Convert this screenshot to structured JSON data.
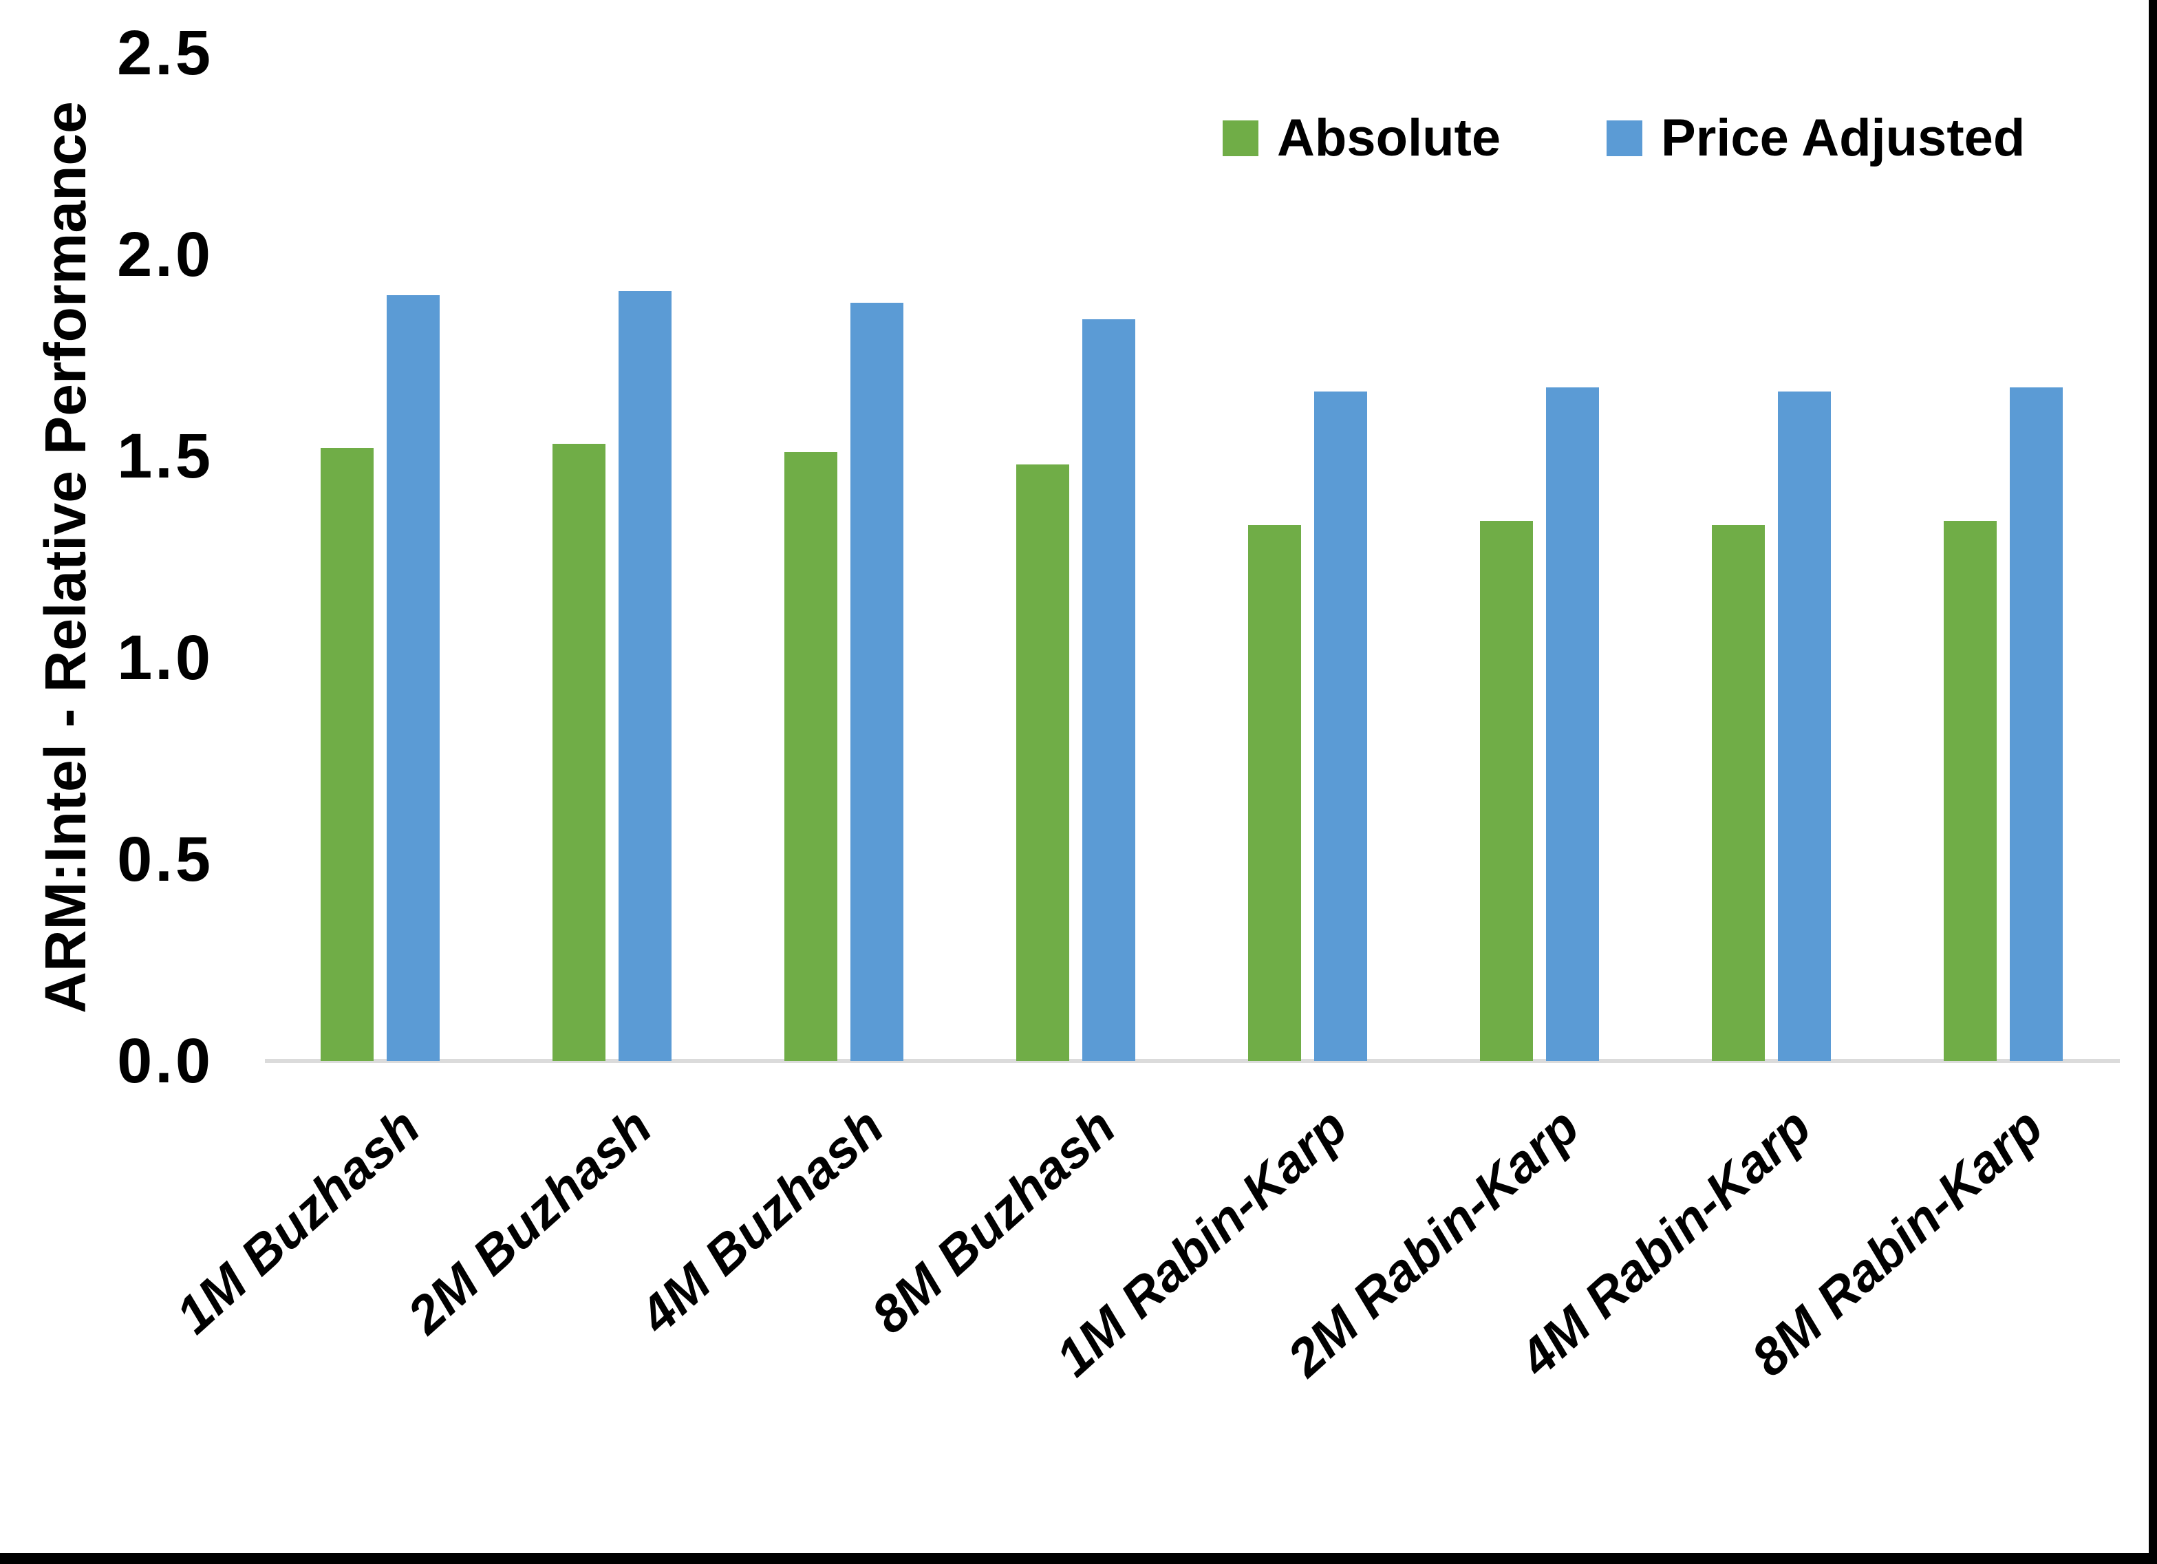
{
  "chart_data": {
    "type": "bar",
    "title": "",
    "xlabel": "",
    "ylabel": "ARM:Intel - Relative Performance",
    "ylim": [
      0,
      2.5
    ],
    "yticks": [
      0.0,
      0.5,
      1.0,
      1.5,
      2.0,
      2.5
    ],
    "ytick_labels": [
      "0.0",
      "0.5",
      "1.0",
      "1.5",
      "2.0",
      "2.5"
    ],
    "grid": false,
    "legend_position": "top-right-inside",
    "categories": [
      "1M Buzhash",
      "2M Buzhash",
      "4M Buzhash",
      "8M Buzhash",
      "1M Rabin-Karp",
      "2M Rabin-Karp",
      "4M Rabin-Karp",
      "8M Rabin-Karp"
    ],
    "series": [
      {
        "name": "Absolute",
        "color": "#70AD47",
        "values": [
          1.52,
          1.53,
          1.51,
          1.48,
          1.33,
          1.34,
          1.33,
          1.34
        ]
      },
      {
        "name": "Price Adjusted",
        "color": "#5B9BD5",
        "values": [
          1.9,
          1.91,
          1.88,
          1.84,
          1.66,
          1.67,
          1.66,
          1.67
        ]
      }
    ]
  },
  "colors": {
    "axis_line": "#DBDBDB",
    "text": "#000000",
    "frame": "#000000",
    "background": "#FFFFFF"
  }
}
